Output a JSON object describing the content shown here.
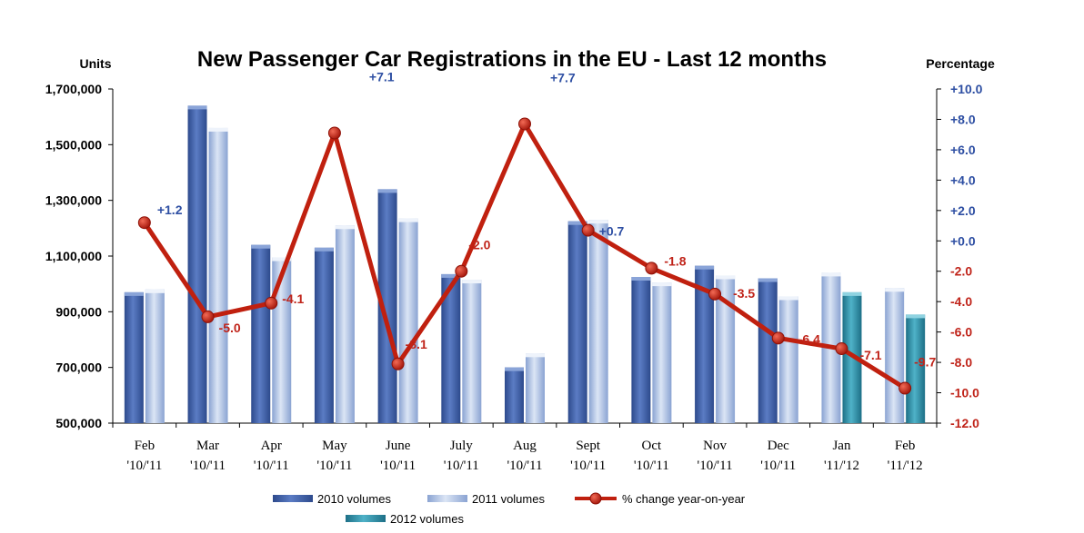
{
  "chart_data": {
    "type": "bar",
    "title": "New Passenger Car Registrations in the EU - Last 12 months",
    "y_left_label": "Units",
    "y_right_label": "Percentage",
    "ylim": [
      500000,
      1700000
    ],
    "y_right_lim": [
      -12.0,
      10.0
    ],
    "y_left_ticks": [
      "500,000",
      "700,000",
      "900,000",
      "1,100,000",
      "1,300,000",
      "1,500,000",
      "1,700,000"
    ],
    "y_right_ticks": [
      "-12.0",
      "-10.0",
      "-8.0",
      "-6.0",
      "-4.0",
      "-2.0",
      "+0.0",
      "+2.0",
      "+4.0",
      "+6.0",
      "+8.0",
      "+10.0"
    ],
    "categories": [
      [
        "Feb",
        "'10/'11"
      ],
      [
        "Mar",
        "'10/'11"
      ],
      [
        "Apr",
        "'10/'11"
      ],
      [
        "May",
        "'10/'11"
      ],
      [
        "June",
        "'10/'11"
      ],
      [
        "July",
        "'10/'11"
      ],
      [
        "Aug",
        "'10/'11"
      ],
      [
        "Sept",
        "'10/'11"
      ],
      [
        "Oct",
        "'10/'11"
      ],
      [
        "Nov",
        "'10/'11"
      ],
      [
        "Dec",
        "'10/'11"
      ],
      [
        "Jan",
        "'11/'12"
      ],
      [
        "Feb",
        "'11/'12"
      ]
    ],
    "bar_pairs": [
      {
        "first": {
          "series": "2010 volumes",
          "value": 970000
        },
        "second": {
          "series": "2011 volumes",
          "value": 980000
        }
      },
      {
        "first": {
          "series": "2010 volumes",
          "value": 1640000
        },
        "second": {
          "series": "2011 volumes",
          "value": 1560000
        }
      },
      {
        "first": {
          "series": "2010 volumes",
          "value": 1140000
        },
        "second": {
          "series": "2011 volumes",
          "value": 1095000
        }
      },
      {
        "first": {
          "series": "2010 volumes",
          "value": 1130000
        },
        "second": {
          "series": "2011 volumes",
          "value": 1210000
        }
      },
      {
        "first": {
          "series": "2010 volumes",
          "value": 1340000
        },
        "second": {
          "series": "2011 volumes",
          "value": 1235000
        }
      },
      {
        "first": {
          "series": "2010 volumes",
          "value": 1035000
        },
        "second": {
          "series": "2011 volumes",
          "value": 1015000
        }
      },
      {
        "first": {
          "series": "2010 volumes",
          "value": 700000
        },
        "second": {
          "series": "2011 volumes",
          "value": 750000
        }
      },
      {
        "first": {
          "series": "2010 volumes",
          "value": 1225000
        },
        "second": {
          "series": "2011 volumes",
          "value": 1230000
        }
      },
      {
        "first": {
          "series": "2010 volumes",
          "value": 1025000
        },
        "second": {
          "series": "2011 volumes",
          "value": 1005000
        }
      },
      {
        "first": {
          "series": "2010 volumes",
          "value": 1065000
        },
        "second": {
          "series": "2011 volumes",
          "value": 1030000
        }
      },
      {
        "first": {
          "series": "2010 volumes",
          "value": 1020000
        },
        "second": {
          "series": "2011 volumes",
          "value": 955000
        }
      },
      {
        "first": {
          "series": "2011 volumes",
          "value": 1040000
        },
        "second": {
          "series": "2012 volumes",
          "value": 970000
        }
      },
      {
        "first": {
          "series": "2011 volumes",
          "value": 985000
        },
        "second": {
          "series": "2012 volumes",
          "value": 890000
        }
      }
    ],
    "line_series": {
      "name": "% change year-on-year",
      "values": [
        1.2,
        -5.0,
        -4.1,
        7.1,
        -8.1,
        -2.0,
        7.7,
        0.7,
        -1.8,
        -3.5,
        -6.4,
        -7.1,
        -9.7
      ],
      "labels": [
        "+1.2",
        "-5.0",
        "-4.1",
        "+7.1",
        "-8.1",
        "-2.0",
        "+7.7",
        "+0.7",
        "-1.8",
        "-3.5",
        "-6.4",
        "-7.1",
        "-9.7"
      ]
    },
    "legend": [
      {
        "name": "2010 volumes",
        "kind": "bar"
      },
      {
        "name": "2011 volumes",
        "kind": "bar"
      },
      {
        "name": "% change year-on-year",
        "kind": "line"
      },
      {
        "name": "2012 volumes",
        "kind": "bar"
      }
    ],
    "legend_position": "bottom",
    "grid": false,
    "colors": {
      "2010 volumes": "#3f5fa6",
      "2011 volumes": "#a7bde3",
      "2012 volumes": "#2c8ca6",
      "line": "#c0200f",
      "positive_label": "#2e4fa3",
      "negative_label": "#c0241a"
    }
  }
}
